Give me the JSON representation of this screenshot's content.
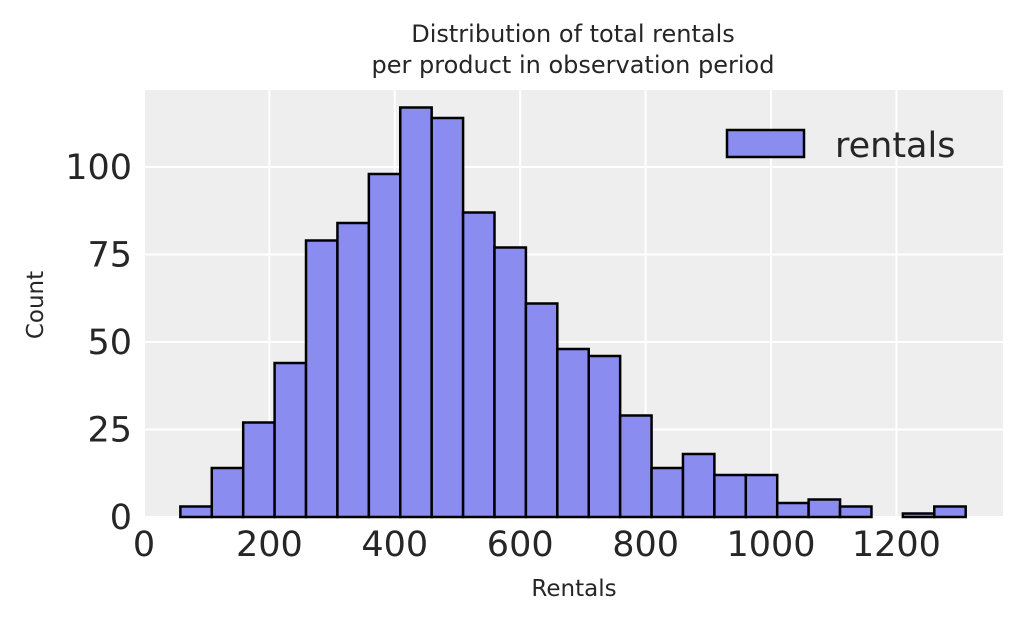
{
  "chart_data": {
    "type": "bar",
    "title_lines": [
      "Distribution of total rentals",
      "per product in observation period"
    ],
    "xlabel": "Rentals",
    "ylabel": "Count",
    "xlim": [
      0,
      1370
    ],
    "ylim": [
      0,
      122
    ],
    "xticks": [
      0,
      200,
      400,
      600,
      800,
      1000,
      1200
    ],
    "yticks": [
      0,
      25,
      50,
      75,
      100
    ],
    "grid": true,
    "legend": {
      "position": "top-right",
      "entries": [
        "rentals"
      ]
    },
    "colors": {
      "bar_fill": "#8a8cf0",
      "bar_edge": "#000000",
      "plot_bg": "#eeeeee",
      "grid": "#ffffff"
    },
    "bins": {
      "start": 58,
      "width": 50.1,
      "counts": [
        3,
        14,
        27,
        44,
        79,
        84,
        98,
        117,
        114,
        87,
        77,
        61,
        48,
        46,
        29,
        14,
        18,
        12,
        12,
        4,
        5,
        3,
        0,
        1,
        3
      ]
    }
  }
}
